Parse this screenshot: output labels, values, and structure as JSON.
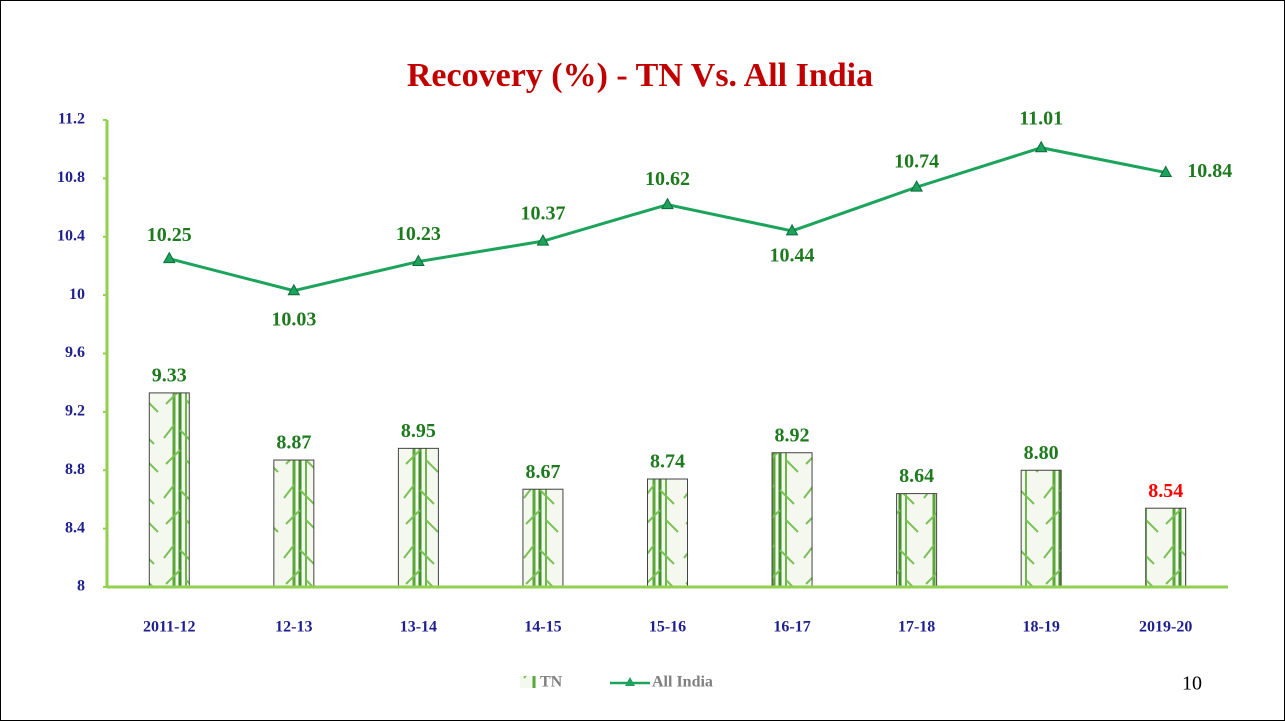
{
  "chart_data": {
    "type": "bar-line",
    "title": "Recovery (%) - TN Vs. All India",
    "categories": [
      "2011-12",
      "12-13",
      "13-14",
      "14-15",
      "15-16",
      "16-17",
      "17-18",
      "18-19",
      "2019-20"
    ],
    "series": [
      {
        "name": "TN",
        "type": "bar",
        "color": "#3a9a2a",
        "values": [
          9.33,
          8.87,
          8.95,
          8.67,
          8.74,
          8.92,
          8.64,
          8.8,
          8.54
        ],
        "value_labels": [
          "9.33",
          "8.87",
          "8.95",
          "8.67",
          "8.74",
          "8.92",
          "8.64",
          "8.80",
          "8.54"
        ],
        "value_label_colors": [
          "#1e7a1e",
          "#1e7a1e",
          "#1e7a1e",
          "#1e7a1e",
          "#1e7a1e",
          "#1e7a1e",
          "#1e7a1e",
          "#1e7a1e",
          "#ff0000"
        ]
      },
      {
        "name": "All India",
        "type": "line",
        "color": "#1ca35c",
        "values": [
          10.25,
          10.03,
          10.23,
          10.37,
          10.62,
          10.44,
          10.74,
          11.01,
          10.84
        ]
      }
    ],
    "ylim": [
      8,
      11.2
    ],
    "yticks": [
      8,
      8.4,
      8.8,
      9.2,
      9.6,
      10,
      10.4,
      10.8,
      11.2
    ],
    "legend": "bottom",
    "grid": false
  },
  "page_number": "10"
}
